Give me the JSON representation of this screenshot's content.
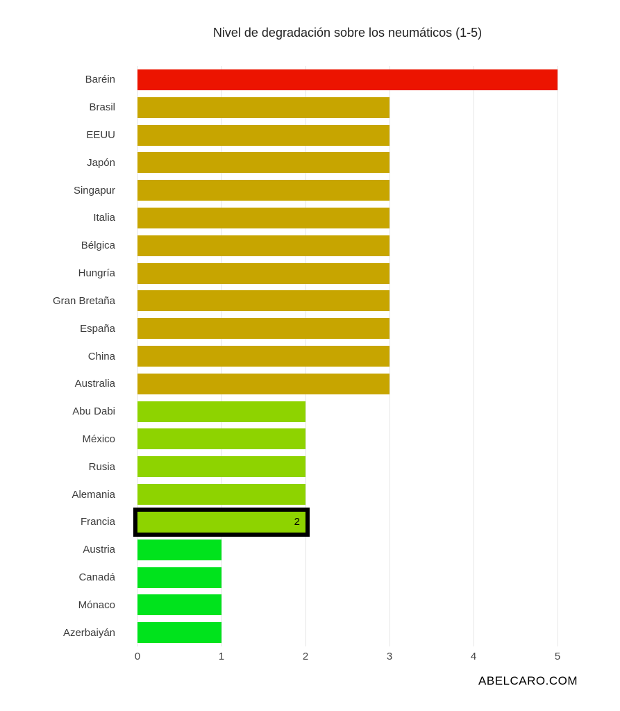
{
  "watermark": "ABELCARO.COM",
  "chart_data": {
    "type": "bar",
    "orientation": "horizontal",
    "title": "Nivel de degradación sobre los neumáticos (1-5)",
    "categories": [
      "Baréin",
      "Brasil",
      "EEUU",
      "Japón",
      "Singapur",
      "Italia",
      "Bélgica",
      "Hungría",
      "Gran Bretaña",
      "España",
      "China",
      "Australia",
      "Abu Dabi",
      "México",
      "Rusia",
      "Alemania",
      "Francia",
      "Austria",
      "Canadá",
      "Mónaco",
      "Azerbaiyán"
    ],
    "values": [
      5,
      3,
      3,
      3,
      3,
      3,
      3,
      3,
      3,
      3,
      3,
      3,
      2,
      2,
      2,
      2,
      2,
      1,
      1,
      1,
      1
    ],
    "value_colors": {
      "5": "#ec1400",
      "3": "#c7a500",
      "2": "#8ed300",
      "1": "#00e31c"
    },
    "highlighted_category": "Francia",
    "highlight_value_label": "2",
    "xlabel": "",
    "ylabel": "",
    "xlim": [
      0,
      5
    ],
    "x_ticks": [
      0,
      1,
      2,
      3,
      4,
      5
    ],
    "grid": true,
    "legend": false,
    "colors": {
      "grid": "#e6e6e6",
      "tick_text": "#444444",
      "label_text": "#3b3b3b",
      "title_text": "#222222",
      "highlight_border": "#000000"
    }
  }
}
